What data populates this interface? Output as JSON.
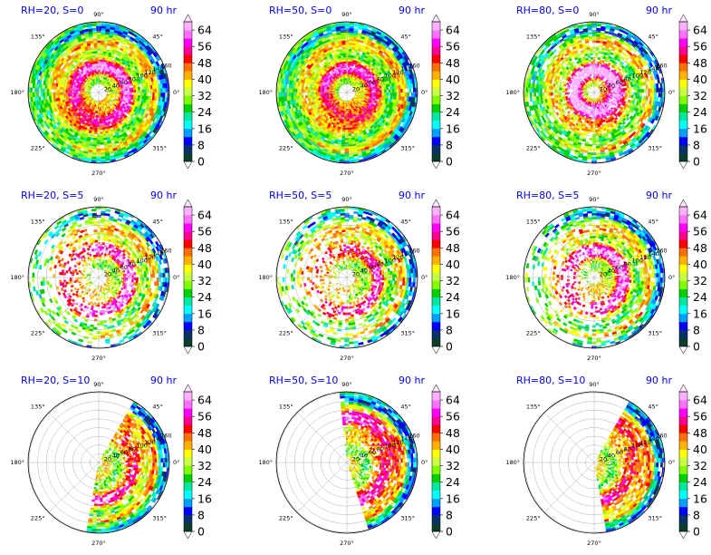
{
  "chart_data": {
    "type": "heatmap",
    "projection": "polar",
    "time_label": "90 hr",
    "angle_ticks": [
      "0°",
      "45°",
      "90°",
      "135°",
      "180°",
      "225°",
      "270°",
      "315°"
    ],
    "radial_ticks": [
      20,
      40,
      60,
      80,
      100,
      120,
      140,
      160
    ],
    "colorbar": {
      "ticks": [
        0,
        8,
        16,
        24,
        32,
        40,
        48,
        56,
        64
      ],
      "range": [
        0,
        68
      ],
      "extend": "both",
      "colors": [
        "#0b3d2e",
        "#08306b",
        "#0000ff",
        "#00a0ff",
        "#00ffff",
        "#00e8a0",
        "#00d000",
        "#80ff00",
        "#c8ff40",
        "#ffff00",
        "#ffb000",
        "#ff7000",
        "#ff0000",
        "#ff0090",
        "#ff00ff",
        "#ff70ff",
        "#ffb0ff",
        "#ffd8ff"
      ]
    },
    "panels": [
      {
        "title": "RH=20, S=0",
        "coverage": 0.9,
        "core": 0.55,
        "shape": "ring",
        "eye": 0.13,
        "band_peak": 0.38,
        "sector": [
          0,
          360
        ]
      },
      {
        "title": "RH=50, S=0",
        "coverage": 0.95,
        "core": 0.45,
        "shape": "ring",
        "eye": 0.12,
        "band_peak": 0.35,
        "sector": [
          0,
          360
        ]
      },
      {
        "title": "RH=80, S=0",
        "coverage": 0.75,
        "core": 0.8,
        "shape": "ring",
        "eye": 0.1,
        "band_peak": 0.3,
        "sector": [
          0,
          360
        ]
      },
      {
        "title": "RH=20, S=5",
        "coverage": 0.7,
        "core": 0.5,
        "shape": "asym",
        "eye": 0.12,
        "band_peak": 0.45,
        "sector": [
          0,
          360
        ]
      },
      {
        "title": "RH=50, S=5",
        "coverage": 0.75,
        "core": 0.4,
        "shape": "asym",
        "eye": 0.12,
        "band_peak": 0.45,
        "sector": [
          0,
          360
        ]
      },
      {
        "title": "RH=80, S=5",
        "coverage": 0.8,
        "core": 0.55,
        "shape": "asym",
        "eye": 0.1,
        "band_peak": 0.4,
        "sector": [
          0,
          360
        ]
      },
      {
        "title": "RH=20, S=10",
        "coverage": 0.35,
        "core": 0.4,
        "shape": "sector",
        "eye": 0.05,
        "band_peak": 0.55,
        "sector": [
          260,
          60
        ]
      },
      {
        "title": "RH=50, S=10",
        "coverage": 0.35,
        "core": 0.55,
        "shape": "sector",
        "eye": 0.05,
        "band_peak": 0.6,
        "sector": [
          290,
          95
        ]
      },
      {
        "title": "RH=80, S=10",
        "coverage": 0.2,
        "core": 0.45,
        "shape": "sector",
        "eye": 0.05,
        "band_peak": 0.6,
        "sector": [
          280,
          60
        ]
      }
    ]
  }
}
